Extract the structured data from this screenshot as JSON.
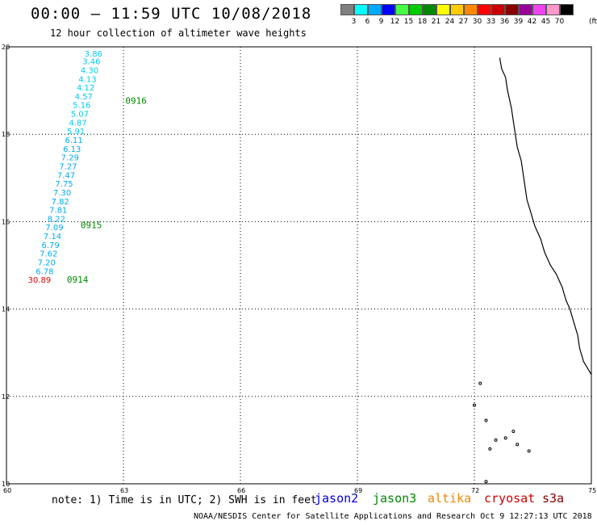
{
  "title": "00:00 – 11:59 UTC 10/08/2018",
  "subtitle": "12 hour collection of altimeter wave heights",
  "legend": {
    "colors": [
      "#808080",
      "#00ffff",
      "#00aaff",
      "#0000ff",
      "#44ff44",
      "#00cc00",
      "#008800",
      "#ffff00",
      "#ffcc00",
      "#ff8800",
      "#ff0000",
      "#cc0000",
      "#880000",
      "#990099",
      "#ee44ee",
      "#ff99cc",
      "#000000"
    ],
    "labels": [
      "3",
      "6",
      "9",
      "12",
      "15",
      "18",
      "21",
      "24",
      "27",
      "30",
      "33",
      "36",
      "39",
      "42",
      "45",
      "70"
    ],
    "unit": "(ft)"
  },
  "map": {
    "lon_range": [
      60,
      75
    ],
    "lat_range": [
      10,
      20
    ],
    "x_ticks": [
      "60",
      "63",
      "66",
      "69",
      "72",
      "75"
    ],
    "y_ticks": [
      "20",
      "18",
      "16",
      "14",
      "12",
      "10"
    ],
    "wave_heights": [
      {
        "lat": 19.78,
        "lon": 62.0,
        "value": "3.86",
        "color": "#00ccee"
      },
      {
        "lat": 19.6,
        "lon": 61.95,
        "value": "3.46",
        "color": "#00ccee"
      },
      {
        "lat": 19.4,
        "lon": 61.9,
        "value": "4.30",
        "color": "#00ccee"
      },
      {
        "lat": 19.2,
        "lon": 61.85,
        "value": "4.13",
        "color": "#00ccee"
      },
      {
        "lat": 19.0,
        "lon": 61.8,
        "value": "4.12",
        "color": "#00ccee"
      },
      {
        "lat": 18.8,
        "lon": 61.75,
        "value": "4.57",
        "color": "#00ccee"
      },
      {
        "lat": 18.6,
        "lon": 61.7,
        "value": "5.16",
        "color": "#00ccee"
      },
      {
        "lat": 18.4,
        "lon": 61.65,
        "value": "5.07",
        "color": "#00ccee"
      },
      {
        "lat": 18.2,
        "lon": 61.6,
        "value": "4.87",
        "color": "#00ccee"
      },
      {
        "lat": 18.0,
        "lon": 61.55,
        "value": "5.91",
        "color": "#00ccee"
      },
      {
        "lat": 17.8,
        "lon": 61.5,
        "value": "6.11",
        "color": "#00aaee"
      },
      {
        "lat": 17.6,
        "lon": 61.45,
        "value": "6.13",
        "color": "#00aaee"
      },
      {
        "lat": 17.4,
        "lon": 61.4,
        "value": "7.29",
        "color": "#00aaee"
      },
      {
        "lat": 17.2,
        "lon": 61.35,
        "value": "7.27",
        "color": "#00aaee"
      },
      {
        "lat": 17.0,
        "lon": 61.3,
        "value": "7.47",
        "color": "#00aaee"
      },
      {
        "lat": 16.8,
        "lon": 61.25,
        "value": "7.75",
        "color": "#00aaee"
      },
      {
        "lat": 16.6,
        "lon": 61.2,
        "value": "7.30",
        "color": "#00aaee"
      },
      {
        "lat": 16.4,
        "lon": 61.15,
        "value": "7.82",
        "color": "#00aaee"
      },
      {
        "lat": 16.2,
        "lon": 61.1,
        "value": "7.81",
        "color": "#00aaee"
      },
      {
        "lat": 16.0,
        "lon": 61.05,
        "value": "8.22",
        "color": "#00aaee"
      },
      {
        "lat": 15.8,
        "lon": 61.0,
        "value": "7.09",
        "color": "#00aaee"
      },
      {
        "lat": 15.6,
        "lon": 60.95,
        "value": "7.14",
        "color": "#00aaee"
      },
      {
        "lat": 15.4,
        "lon": 60.9,
        "value": "6.79",
        "color": "#00aaee"
      },
      {
        "lat": 15.2,
        "lon": 60.85,
        "value": "7.62",
        "color": "#00aaee"
      },
      {
        "lat": 15.0,
        "lon": 60.8,
        "value": "7.20",
        "color": "#00aaee"
      },
      {
        "lat": 14.8,
        "lon": 60.75,
        "value": "6.78",
        "color": "#00aaee"
      },
      {
        "lat": 14.6,
        "lon": 60.55,
        "value": "30.89",
        "color": "#dd0000"
      }
    ],
    "times": [
      {
        "lat": 18.7,
        "lon": 63.05,
        "value": "0916"
      },
      {
        "lat": 15.85,
        "lon": 61.9,
        "value": "0915"
      },
      {
        "lat": 14.6,
        "lon": 61.55,
        "value": "0914"
      }
    ]
  },
  "note": "note: 1) Time is in UTC; 2) SWH is in feet",
  "satellites": [
    {
      "name": "jason2",
      "color": "#0000dd"
    },
    {
      "name": "jason3",
      "color": "#008800"
    },
    {
      "name": "altika",
      "color": "#ee8800"
    },
    {
      "name": "cryosat",
      "color": "#cc0000"
    },
    {
      "name": "s3a",
      "color": "#880000"
    }
  ],
  "credit": "NOAA/NESDIS Center for Satellite Applications and Research   Oct  9 12:27:13 UTC 2018"
}
